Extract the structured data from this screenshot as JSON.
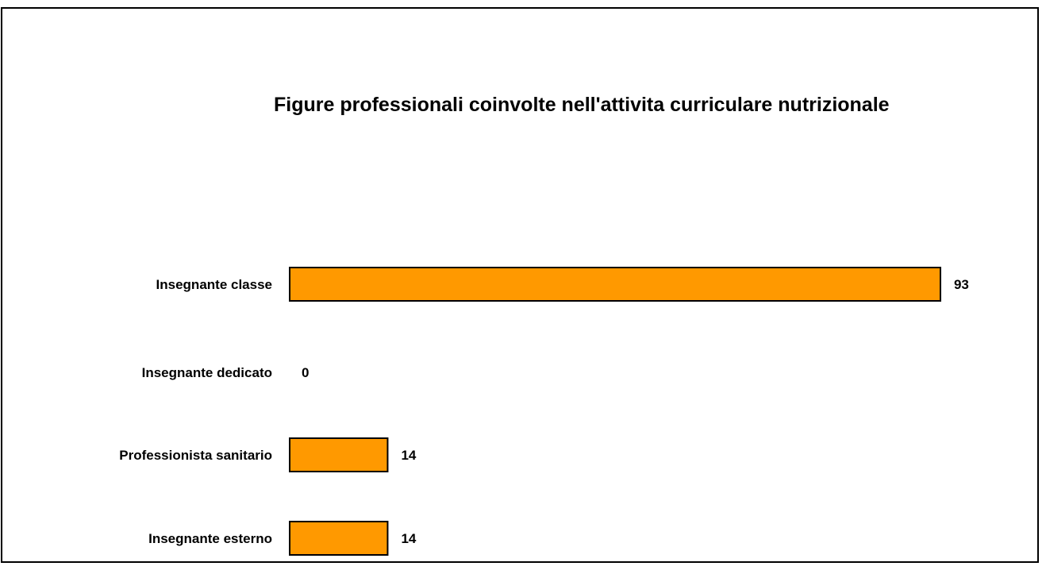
{
  "chart_data": {
    "type": "bar",
    "orientation": "horizontal",
    "title": "Figure professionali coinvolte nell'attivita curriculare nutrizionale",
    "xlabel": "",
    "ylabel": "",
    "categories": [
      "Insegnante classe",
      "Insegnante dedicato",
      "Professionista sanitario",
      "Insegnante esterno"
    ],
    "values": [
      93,
      0,
      14,
      14
    ],
    "value_labels": [
      "93",
      "0",
      "14",
      "14"
    ],
    "xlim": [
      0,
      100
    ],
    "grid": false,
    "legend": "none",
    "colors": {
      "bar_fill": "#FF9900",
      "bar_stroke": "#000000"
    }
  }
}
